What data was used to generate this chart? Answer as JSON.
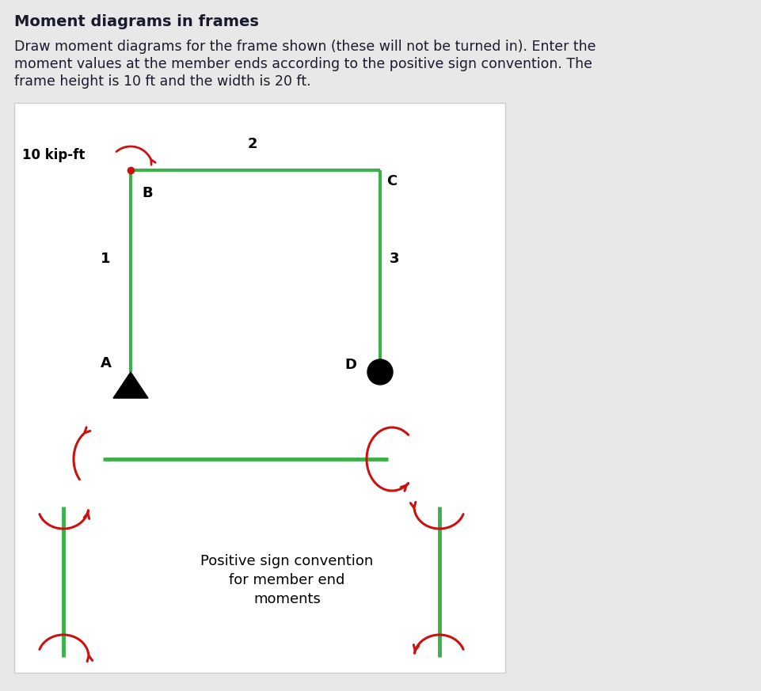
{
  "title": "Moment diagrams in frames",
  "desc1": "Draw moment diagrams for the frame shown (these will not be turned in). Enter the",
  "desc2": "moment values at the member ends according to the positive sign convention. The",
  "desc3": "frame height is 10 ft and the width is 20 ft.",
  "frame_color": "#3cb04a",
  "frame_lw": 3.0,
  "arrow_color": "#cc1111",
  "bg_color": "#e8e8e8",
  "box_bg": "#ffffff",
  "box_border": "#cccccc",
  "title_fontsize": 14,
  "desc_fontsize": 12.5,
  "label_fontsize": 13,
  "sign_text_fontsize": 13
}
